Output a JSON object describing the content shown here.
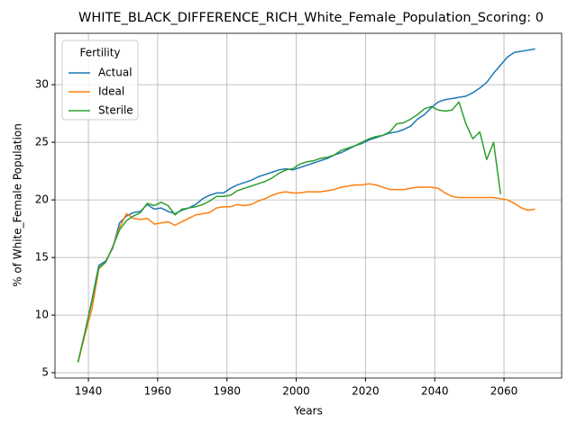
{
  "chart_data": {
    "type": "line",
    "title": "WHITE_BLACK_DIFFERENCE_RICH_White_Female_Population_Scoring: 0",
    "xlabel": "Years",
    "ylabel": "% of White_Female Population",
    "legend_title": "Fertility",
    "legend": "upper left",
    "grid": true,
    "xlim": [
      1930.35,
      2076.65
    ],
    "ylim": [
      4.54,
      34.46
    ],
    "xticks": [
      1940,
      1960,
      1980,
      2000,
      2020,
      2040,
      2060
    ],
    "yticks": [
      5,
      10,
      15,
      20,
      25,
      30
    ],
    "x": [
      1937,
      1939,
      1941,
      1943,
      1945,
      1947,
      1949,
      1951,
      1953,
      1955,
      1957,
      1959,
      1961,
      1963,
      1965,
      1967,
      1969,
      1971,
      1973,
      1975,
      1977,
      1979,
      1981,
      1983,
      1985,
      1987,
      1989,
      1991,
      1993,
      1995,
      1997,
      1999,
      2001,
      2003,
      2005,
      2007,
      2009,
      2011,
      2013,
      2015,
      2017,
      2019,
      2021,
      2023,
      2025,
      2027,
      2029,
      2031,
      2033,
      2035,
      2037,
      2039,
      2041,
      2043,
      2045,
      2047,
      2049,
      2051,
      2053,
      2055,
      2057,
      2059,
      2061,
      2063,
      2065,
      2067,
      2069
    ],
    "series": [
      {
        "name": "Actual",
        "color": "#1f77b4",
        "values": [
          5.9,
          8.5,
          11.3,
          14.3,
          14.7,
          15.8,
          18.0,
          18.6,
          18.9,
          19.0,
          19.6,
          19.2,
          19.3,
          19.0,
          18.8,
          19.1,
          19.3,
          19.6,
          20.1,
          20.4,
          20.6,
          20.6,
          21.0,
          21.3,
          21.5,
          21.7,
          22.0,
          22.2,
          22.4,
          22.6,
          22.7,
          22.6,
          22.8,
          23.0,
          23.2,
          23.4,
          23.6,
          23.9,
          24.1,
          24.4,
          24.7,
          24.9,
          25.2,
          25.4,
          25.6,
          25.8,
          25.9,
          26.1,
          26.4,
          27.0,
          27.4,
          28.0,
          28.5,
          28.7,
          28.8,
          28.9,
          29.0,
          29.3,
          29.7,
          30.2,
          31.0,
          31.7,
          32.4,
          32.8,
          32.9,
          33.0,
          33.1
        ]
      },
      {
        "name": "Ideal",
        "color": "#ff7f0e",
        "values": [
          5.9,
          8.3,
          10.5,
          14.0,
          14.6,
          15.9,
          17.6,
          18.8,
          18.4,
          18.3,
          18.4,
          17.9,
          18.0,
          18.1,
          17.8,
          18.1,
          18.4,
          18.7,
          18.8,
          18.9,
          19.3,
          19.4,
          19.4,
          19.6,
          19.5,
          19.6,
          19.9,
          20.1,
          20.4,
          20.6,
          20.7,
          20.6,
          20.6,
          20.7,
          20.7,
          20.7,
          20.8,
          20.9,
          21.1,
          21.2,
          21.3,
          21.3,
          21.4,
          21.3,
          21.1,
          20.9,
          20.9,
          20.9,
          21.0,
          21.1,
          21.1,
          21.1,
          21.0,
          20.6,
          20.3,
          20.2,
          20.2,
          20.2,
          20.2,
          20.2,
          20.2,
          20.1,
          20.0,
          19.7,
          19.3,
          19.1,
          19.2
        ]
      },
      {
        "name": "Sterile",
        "color": "#2ca02c",
        "values": [
          5.9,
          8.5,
          11.2,
          14.1,
          14.6,
          15.9,
          17.4,
          18.2,
          18.6,
          18.9,
          19.7,
          19.5,
          19.8,
          19.5,
          18.7,
          19.2,
          19.3,
          19.4,
          19.6,
          19.9,
          20.3,
          20.3,
          20.4,
          20.8,
          21.0,
          21.2,
          21.4,
          21.6,
          21.9,
          22.3,
          22.6,
          22.7,
          23.1,
          23.3,
          23.4,
          23.6,
          23.7,
          23.9,
          24.3,
          24.5,
          24.7,
          25.0,
          25.3,
          25.5,
          25.6,
          25.9,
          26.6,
          26.7,
          27.0,
          27.4,
          27.9,
          28.1,
          27.8,
          27.7,
          27.8,
          28.5,
          26.6,
          25.3,
          25.9,
          23.5,
          25.0,
          20.5,
          null,
          null,
          null,
          null,
          null
        ]
      }
    ]
  }
}
